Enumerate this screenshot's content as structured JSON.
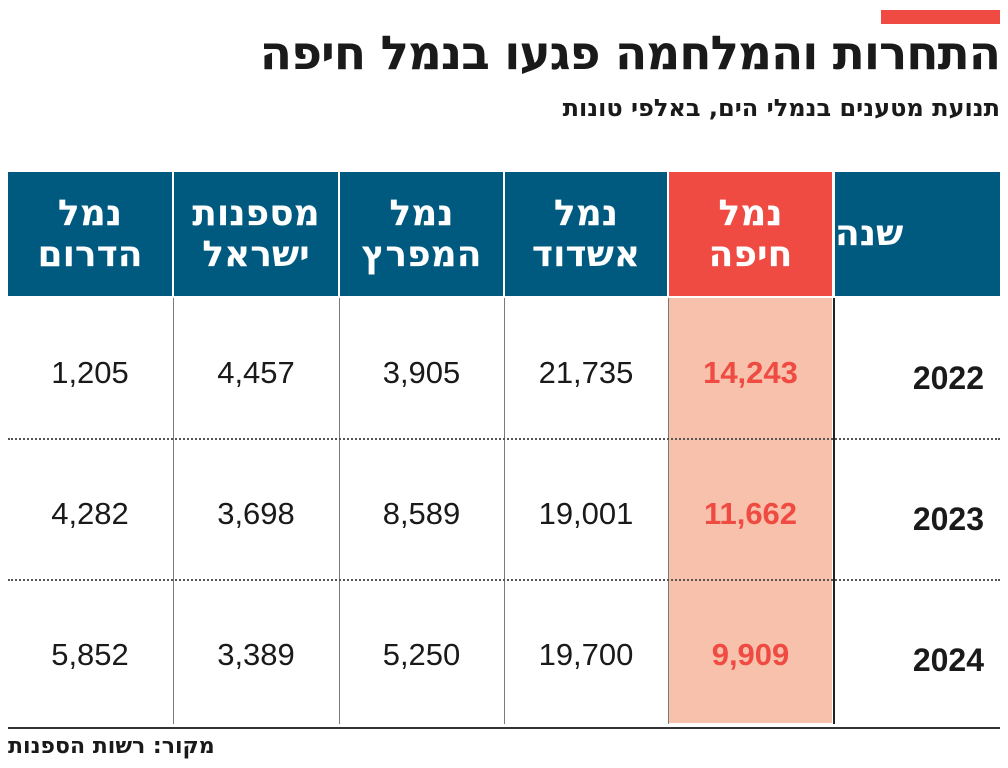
{
  "title": "התחרות והמלחמה פגעו בנמל חיפה",
  "subtitle": "תנועת מטענים בנמלי הים, באלפי טונות",
  "source": "מקור: רשות הספנות",
  "colors": {
    "header": "#005a80",
    "highlight_header": "#ef4b43",
    "highlight_fill": "#f7c1ab",
    "highlight_text": "#ef4b43",
    "accent": "#ef4b43"
  },
  "chart_data": {
    "type": "table",
    "columns": [
      {
        "line1": "שנה",
        "line2": ""
      },
      {
        "line1": "נמל",
        "line2": "חיפה"
      },
      {
        "line1": "נמל",
        "line2": "אשדוד"
      },
      {
        "line1": "נמל",
        "line2": "המפרץ"
      },
      {
        "line1": "מספנות",
        "line2": "ישראל"
      },
      {
        "line1": "נמל",
        "line2": "הדרום"
      }
    ],
    "rows": [
      {
        "year": "2022",
        "haifa": "14,243",
        "ashdod": "21,735",
        "hamifratz": "3,905",
        "mispanot": "4,457",
        "darom": "1,205"
      },
      {
        "year": "2023",
        "haifa": "11,662",
        "ashdod": "19,001",
        "hamifratz": "8,589",
        "mispanot": "3,698",
        "darom": "4,282"
      },
      {
        "year": "2024",
        "haifa": "9,909",
        "ashdod": "19,700",
        "hamifratz": "5,250",
        "mispanot": "3,389",
        "darom": "5,852"
      }
    ]
  }
}
